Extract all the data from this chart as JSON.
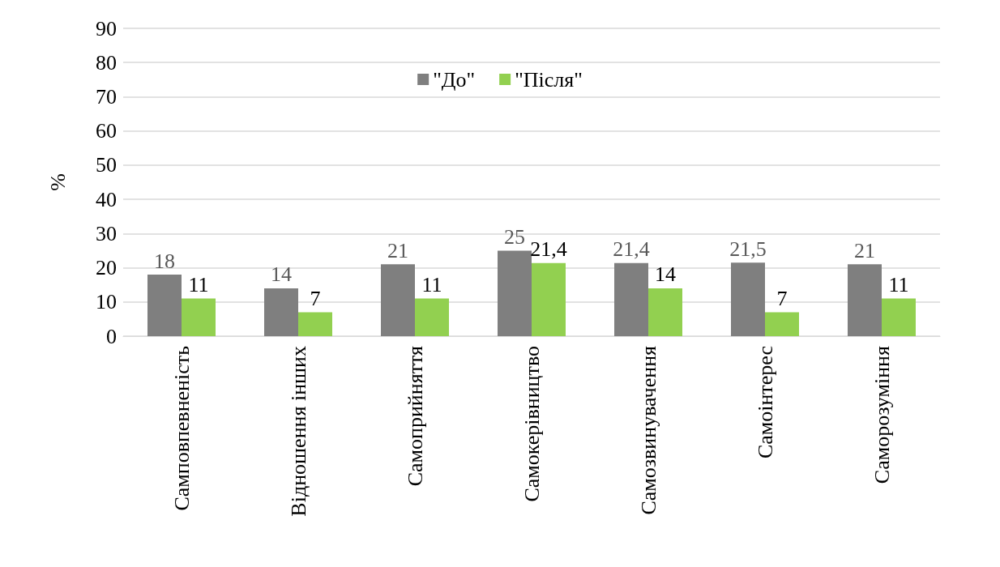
{
  "chart_data": {
    "type": "bar",
    "ylabel": "%",
    "categories": [
      "Самповпевненість",
      "Відношення інших",
      "Самоприйняття",
      "Самокерівництво",
      "Самозвинувачення",
      "Самоінтерес",
      "Саморозуміння"
    ],
    "series": [
      {
        "name": "\"До\"",
        "color": "#7f7f7f",
        "values": [
          18,
          14,
          21,
          25,
          21.4,
          21.5,
          21
        ],
        "value_labels": [
          "18",
          "14",
          "21",
          "25",
          "21,4",
          "21,5",
          "21"
        ]
      },
      {
        "name": "\"Після\"",
        "color": "#92d050",
        "values": [
          11,
          7,
          11,
          21.4,
          14,
          7,
          11
        ],
        "value_labels": [
          "11",
          "7",
          "11",
          "21,4",
          "14",
          "7",
          "11"
        ]
      }
    ],
    "ylim": [
      0,
      90
    ],
    "yticks": [
      0,
      10,
      20,
      30,
      40,
      50,
      60,
      70,
      80,
      90
    ],
    "grid": "y",
    "legend": "top"
  }
}
